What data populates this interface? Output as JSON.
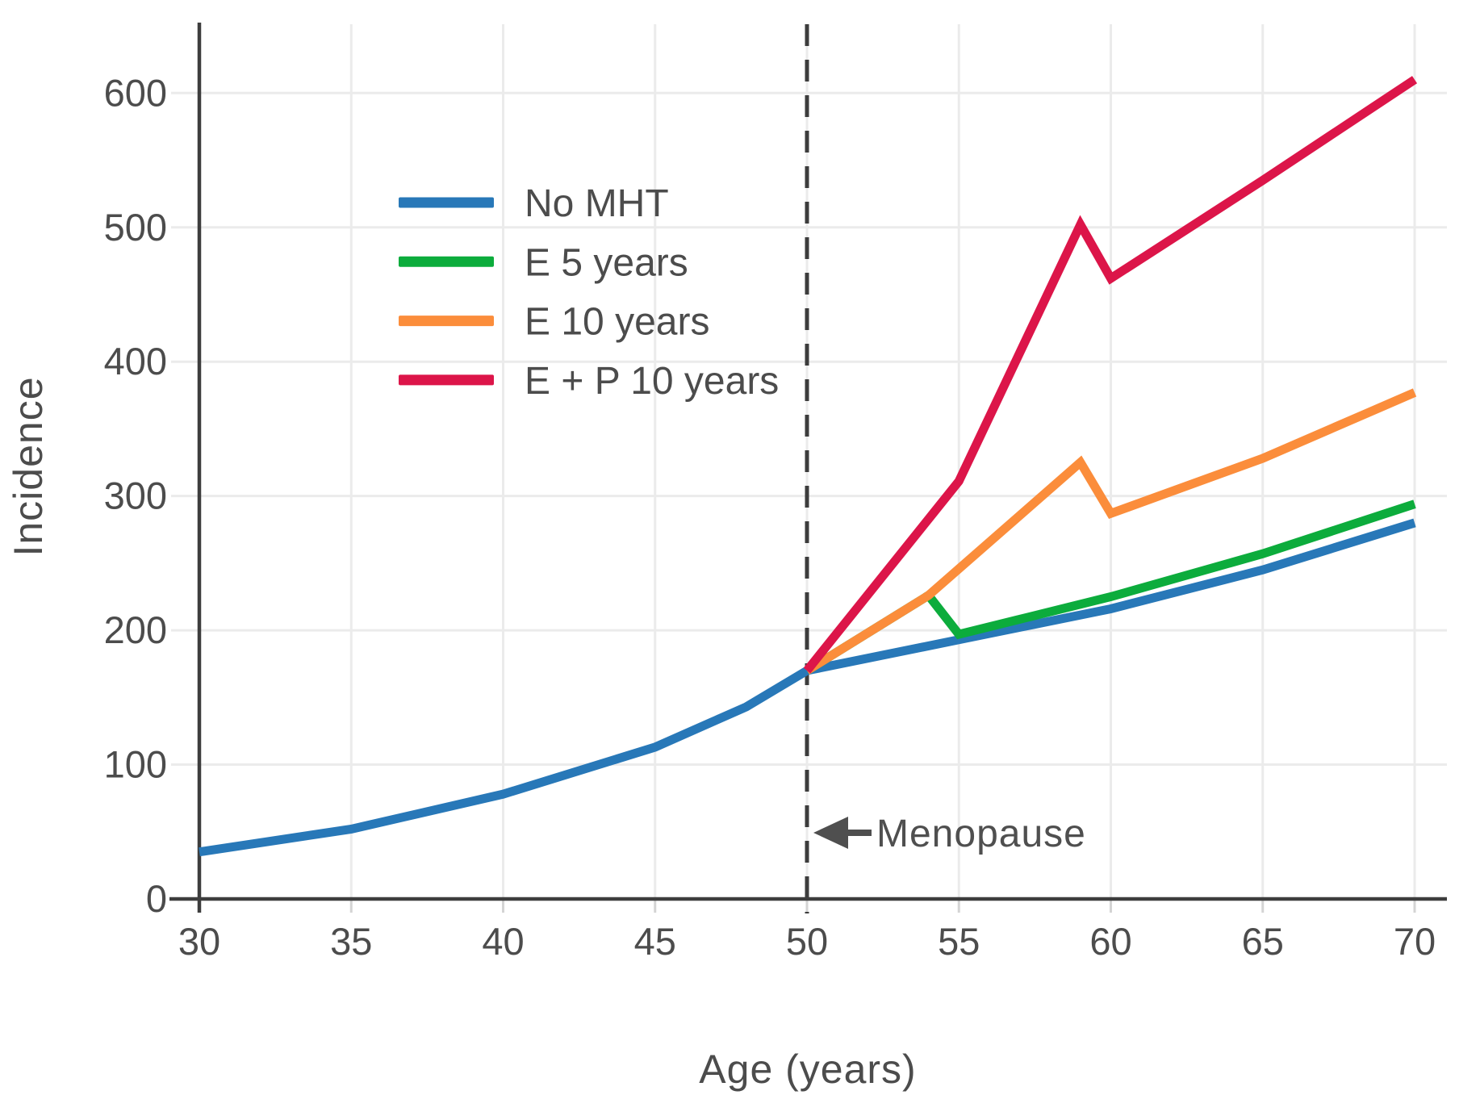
{
  "figure": {
    "ylabel": "Incidence",
    "xlabel": "Age (years)"
  },
  "annotation": {
    "menopause_label": "Menopause",
    "arrow_icon": "left-arrow"
  },
  "colors": {
    "no_mht": "#2878b8",
    "e_5_years": "#0cac3c",
    "e_10_years": "#fb8d3b",
    "e_p_10_years": "#dc1549",
    "text": "#4c4c4c",
    "spine": "#3d3d3d",
    "gridline": "#ebebeb",
    "dashed_line": "#3d3d3d"
  },
  "chart_data": {
    "type": "line",
    "title": "",
    "xlabel": "Age (years)",
    "ylabel": "Incidence",
    "xlim": [
      30,
      70
    ],
    "ylim": [
      0,
      650
    ],
    "xticks": [
      30,
      35,
      40,
      45,
      50,
      55,
      60,
      65,
      70
    ],
    "yticks": [
      0,
      100,
      200,
      300,
      400,
      500,
      600
    ],
    "grid": true,
    "legend_position": "upper-left-inside",
    "menopause_age": 50,
    "series": [
      {
        "name": "No MHT",
        "color": "#2878b8",
        "points": [
          [
            30,
            35
          ],
          [
            35,
            52
          ],
          [
            40,
            78
          ],
          [
            45,
            113
          ],
          [
            47,
            133
          ],
          [
            48,
            143
          ],
          [
            50,
            170
          ],
          [
            55,
            193
          ],
          [
            60,
            216
          ],
          [
            65,
            245
          ],
          [
            70,
            280
          ]
        ]
      },
      {
        "name": "E 5 years",
        "color": "#0cac3c",
        "points": [
          [
            50,
            170
          ],
          [
            54,
            226
          ],
          [
            55,
            197
          ],
          [
            60,
            225
          ],
          [
            65,
            257
          ],
          [
            70,
            294
          ]
        ]
      },
      {
        "name": "E 10 years",
        "color": "#fb8d3b",
        "points": [
          [
            50,
            170
          ],
          [
            54,
            226
          ],
          [
            59,
            325
          ],
          [
            60,
            287
          ],
          [
            65,
            328
          ],
          [
            70,
            377
          ]
        ]
      },
      {
        "name": "E + P 10 years",
        "color": "#dc1549",
        "points": [
          [
            50,
            170
          ],
          [
            55,
            311
          ],
          [
            59,
            502
          ],
          [
            60,
            462
          ],
          [
            65,
            535
          ],
          [
            70,
            610
          ]
        ]
      }
    ]
  }
}
